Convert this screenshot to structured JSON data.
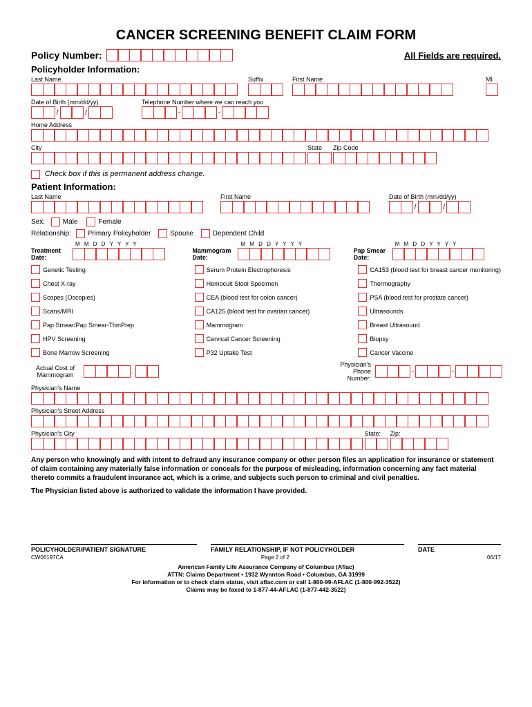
{
  "title": "CANCER SCREENING BENEFIT CLAIM FORM",
  "policy": {
    "label": "Policy Number:",
    "required": "All Fields are required."
  },
  "section1": "Policyholder Information:",
  "ph": {
    "lastName": "Last Name",
    "suffix": "Suffix",
    "firstName": "First Name",
    "mi": "MI",
    "dob": "Date of Birth (mm/dd/yy)",
    "phone": "Telephone Number where we can reach you",
    "home": "Home Address",
    "city": "City",
    "state": "State",
    "zip": "Zip Code",
    "permAddr": "Check box if this is permanent address change."
  },
  "section2": "Patient Information:",
  "pt": {
    "lastName": "Last Name",
    "firstName": "First Name",
    "dob": "Date of Birth (mm/dd/yy)",
    "sex": "Sex:",
    "male": "Male",
    "female": "Female",
    "rel": "Relationship:",
    "primary": "Primary Policyholder",
    "spouse": "Spouse",
    "dep": "Dependent Child"
  },
  "dates": {
    "header": "M  M  D  D  Y  Y  Y  Y",
    "treatment": "Treatment Date:",
    "mammogram": "Mammogram Date:",
    "papsmear": "Pap Smear Date:"
  },
  "tests": {
    "col1": [
      "Genetic Testing",
      "Chest X-ray",
      "Scopes (Oscopies)",
      "Scans/MRI",
      "Pap Smear/Pap Smear-ThinPrep",
      "HPV Screening",
      "Bone Marrow Screening"
    ],
    "col2": [
      "Serum Protein Electrophoresis",
      "Hemocult Stool Specimen",
      "CEA (blood test for colon cancer)",
      "CA125 (blood test for ovarian cancer)",
      "Mammogram",
      "Cervical Cancer Screening",
      "P32 Uptake Test"
    ],
    "col3": [
      "CA153 (blood test for breast cancer monitoring)",
      "Thermography",
      "PSA (blood test for prostate cancer)",
      "Ultrasounds",
      "Breast Ultrasound",
      "Biopsy",
      "Cancer Vaccine"
    ]
  },
  "costs": {
    "actual": "Actual Cost of Mammogram",
    "dot": ".",
    "physPhone": "Physician's Phone Number:"
  },
  "phys": {
    "name": "Physician's Name",
    "addr": "Physician's Street Address",
    "city": "Physician's City",
    "state": "State:",
    "zip": "Zip:"
  },
  "legal1": "Any person who knowingly and with intent to defraud any insurance company or other person files an application for insurance or statement of claim containing any materially false information or conceals for the purpose of misleading, information concerning any fact material thereto commits a fraudulent insurance act, which is a crime, and subjects such person to criminal and civil penalties.",
  "legal2": "The Physician listed above is authorized to validate the information I have provided.",
  "sig": {
    "s1": "POLICYHOLDER/PATIENT SIGNATURE",
    "s2": "FAMILY RELATIONSHIP, IF NOT POLICYHOLDER",
    "s3": "DATE"
  },
  "footer": {
    "form": "CW06197CA",
    "page": "Page 2 of 2",
    "rev": "06/17",
    "l1": "American Family Life Assurance Company of Columbus (Aflac)",
    "l2": "ATTN: Claims Department • 1932 Wynnton Road • Columbus, GA 31999",
    "l3": "For information or to check claim status, visit aflac.com or call 1-800-99-AFLAC (1-800-992-3522)",
    "l4": "Claims may be faxed to 1-877-44-AFLAC (1-877-442-3522)"
  },
  "colors": {
    "box": "#e03030"
  }
}
